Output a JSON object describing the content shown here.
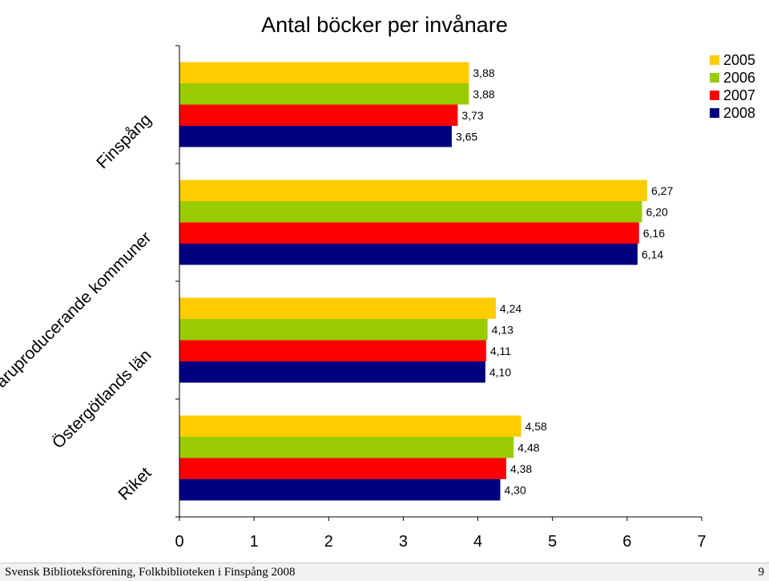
{
  "chart_data": {
    "type": "bar",
    "orientation": "horizontal",
    "title": "Antal böcker per invånare",
    "categories": [
      "Finspång",
      "Varuproducerande kommuner",
      "Östergötlands län",
      "Riket"
    ],
    "series": [
      {
        "name": "2005",
        "color": "#ffcc00",
        "values": [
          3.88,
          6.27,
          4.24,
          4.58
        ],
        "labels": [
          "3,88",
          "6,27",
          "4,24",
          "4,58"
        ]
      },
      {
        "name": "2006",
        "color": "#99cc00",
        "values": [
          3.88,
          6.2,
          4.13,
          4.48
        ],
        "labels": [
          "3,88",
          "6,20",
          "4,13",
          "4,48"
        ]
      },
      {
        "name": "2007",
        "color": "#ff0000",
        "values": [
          3.73,
          6.16,
          4.11,
          4.38
        ],
        "labels": [
          "3,73",
          "6,16",
          "4,11",
          "4,38"
        ]
      },
      {
        "name": "2008",
        "color": "#000080",
        "values": [
          3.65,
          6.14,
          4.1,
          4.3
        ],
        "labels": [
          "3,65",
          "6,14",
          "4,10",
          "4,30"
        ]
      }
    ],
    "xlim": [
      0,
      7
    ],
    "x_ticks": [
      "0",
      "1",
      "2",
      "3",
      "4",
      "5",
      "6",
      "7"
    ],
    "grid": false,
    "legend_position": "top-right",
    "xlabel": "",
    "ylabel": ""
  },
  "footer": {
    "text": "Svensk Biblioteksförening, Folkbiblioteken i Finspång 2008",
    "page_number": "9"
  }
}
